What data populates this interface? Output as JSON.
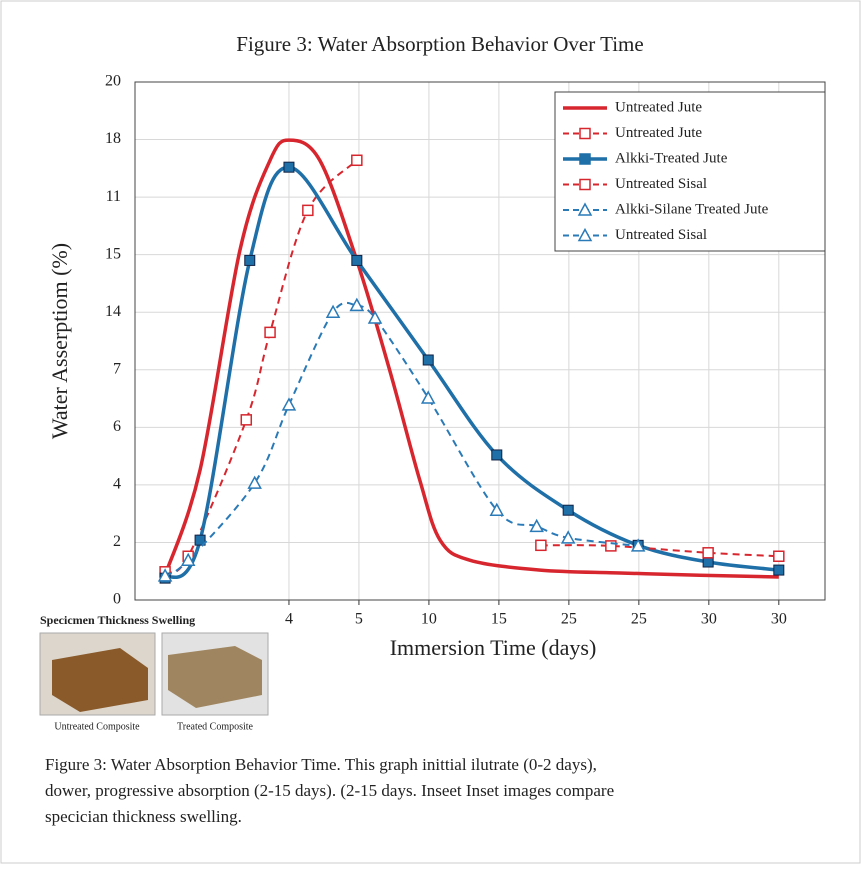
{
  "chart_data": {
    "type": "line",
    "title": "Figure 3: Water Absorption Behavior Over Time",
    "xlabel": "Immersion Time (days)",
    "ylabel": "Water Asserptiom (%)",
    "xlim": [
      -2.2,
      7.66
    ],
    "ylim": [
      0,
      9
    ],
    "xticks": [
      {
        "value": 0,
        "label": "4"
      },
      {
        "value": 1,
        "label": "5"
      },
      {
        "value": 2,
        "label": "10"
      },
      {
        "value": 3,
        "label": "15"
      },
      {
        "value": 4,
        "label": "25"
      },
      {
        "value": 5,
        "label": "25"
      },
      {
        "value": 6,
        "label": "30"
      },
      {
        "value": 7,
        "label": "30"
      }
    ],
    "yticks": [
      0,
      {
        "value": 1,
        "label": "2"
      },
      {
        "value": 2,
        "label": "4"
      },
      {
        "value": 3,
        "label": "6"
      },
      {
        "value": 4,
        "label": "7"
      },
      {
        "value": 5,
        "label": "14"
      },
      {
        "value": 6,
        "label": "15"
      },
      {
        "value": 7,
        "label": "11"
      },
      {
        "value": 8,
        "label": "18"
      },
      {
        "value": 9,
        "label": "20"
      }
    ],
    "grid": true,
    "legend": "top-right",
    "series": [
      {
        "name": "Untreated Jute",
        "color": "#d7262e",
        "dash": false,
        "marker": "none",
        "x": [
          -1.77,
          -1.27,
          -0.7,
          -0.27,
          0,
          0.44,
          0.97,
          1.44,
          1.87,
          2.16,
          2.59,
          3.59,
          4.73,
          5.87,
          7
        ],
        "values": [
          0.43,
          2.26,
          6.08,
          7.64,
          7.99,
          7.64,
          5.9,
          3.99,
          2.08,
          1.04,
          0.69,
          0.52,
          0.47,
          0.43,
          0.4
        ]
      },
      {
        "name": "Untreated Jute",
        "color": "#d7262e",
        "dash": true,
        "marker": "square",
        "x": [
          -1.77,
          -1.44,
          -0.61,
          -0.27,
          0.27,
          0.97
        ],
        "values": [
          0.49,
          0.76,
          3.13,
          4.65,
          6.77,
          7.64
        ]
      },
      {
        "name": "Alkki-Treated Jute",
        "color": "#1f6fa8",
        "dash": false,
        "marker": "filled-square",
        "x": [
          -1.77,
          -1.27,
          -0.56,
          0,
          0.97,
          1.99,
          2.97,
          3.99,
          4.99,
          5.99,
          7
        ],
        "values": [
          0.38,
          1.04,
          5.9,
          7.52,
          5.9,
          4.17,
          2.52,
          1.56,
          0.95,
          0.66,
          0.52
        ]
      },
      {
        "name": "Untreated Sisal",
        "color": "#d7262e",
        "dash": true,
        "marker": "square",
        "x": [
          3.6,
          4.6,
          5.99,
          7
        ],
        "values": [
          0.95,
          0.94,
          0.82,
          0.76
        ]
      },
      {
        "name": "Alkki-Silane Treated Jute",
        "color": "#2a7ab8",
        "dash": true,
        "marker": "triangle",
        "x": [
          -1.77,
          -1.44,
          -0.49,
          0,
          0.63,
          0.97
        ],
        "values": [
          0.42,
          0.69,
          2.03,
          3.39,
          5,
          5.12
        ]
      },
      {
        "name": "Untreated Sisal",
        "color": "#2a7ab8",
        "dash": true,
        "marker": "triangle",
        "x": [
          0.97,
          1.23,
          1.99,
          2.97,
          3.54,
          3.99,
          4.99
        ],
        "values": [
          5.12,
          4.9,
          3.51,
          1.56,
          1.28,
          1.08,
          0.94
        ]
      }
    ]
  },
  "inset": {
    "title": "Specicmen Thickness Swelling",
    "labels": [
      "Untreated Composite",
      "Treated Composite"
    ]
  },
  "caption": [
    "Figure 3: Water Absorption Behavior Time. This graph inittial ilutrate (0-2 days),",
    "dower, progressive absorption (2-15 days). (2-15 days. Inseet Inset images compare",
    "specician thickness swelling."
  ]
}
